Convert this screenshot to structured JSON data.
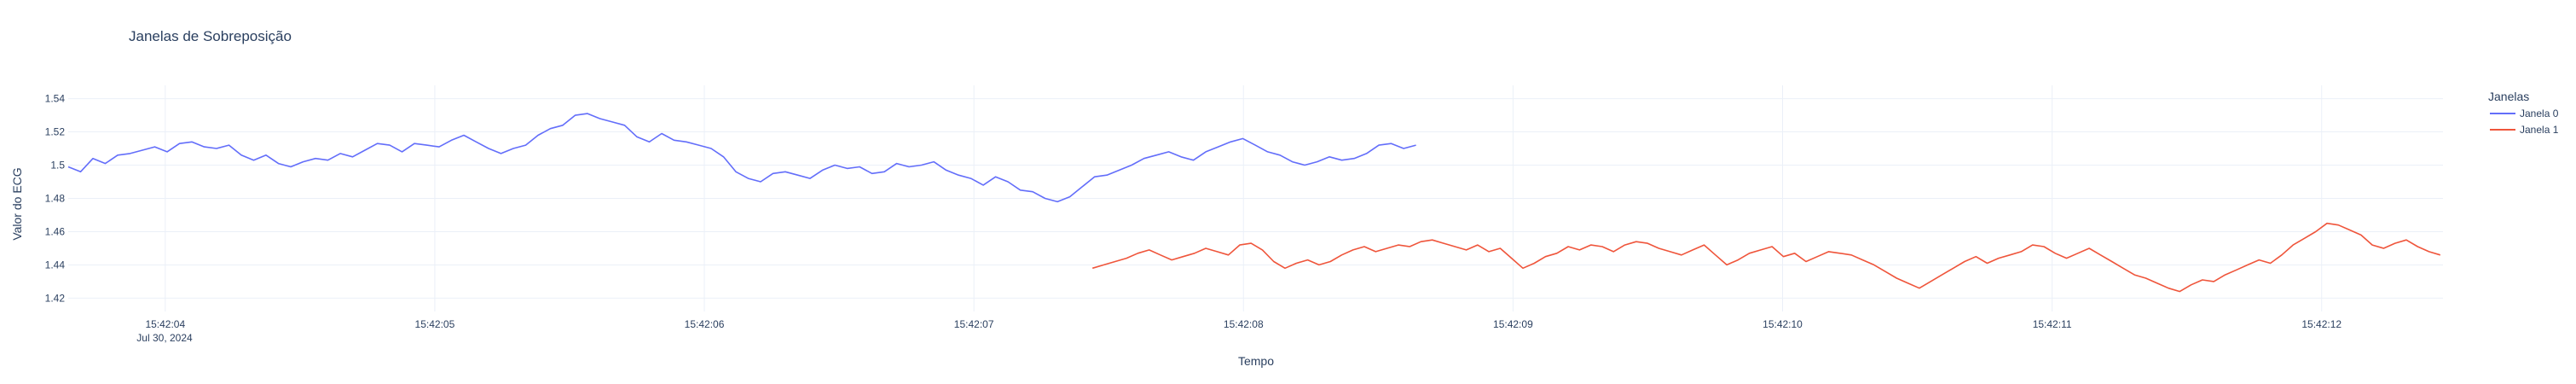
{
  "chart_data": {
    "type": "line",
    "title": "Janelas de Sobreposição",
    "xlabel": "Tempo",
    "ylabel": "Valor do ECG",
    "x_ticks": [
      "15:42:04",
      "15:42:05",
      "15:42:06",
      "15:42:07",
      "15:42:08",
      "15:42:09",
      "15:42:10",
      "15:42:11",
      "15:42:12"
    ],
    "x_tick_date": "Jul 30, 2024",
    "xlim": [
      "2024-07-30 15:42:03.640",
      "2024-07-30 15:42:12.450"
    ],
    "y_ticks": [
      "1.42",
      "1.44",
      "1.46",
      "1.48",
      "1.5",
      "1.52",
      "1.54"
    ],
    "ylim": [
      1.412,
      1.548
    ],
    "grid": true,
    "legend_title": "Janelas",
    "legend_position": "top-right",
    "series": [
      {
        "name": "Janela 0",
        "color": "#636efa",
        "x_start": "2024-07-30 15:42:03.640",
        "x_end": "2024-07-30 15:42:08.640",
        "values": [
          1.499,
          1.496,
          1.504,
          1.501,
          1.506,
          1.507,
          1.509,
          1.511,
          1.508,
          1.513,
          1.514,
          1.511,
          1.51,
          1.512,
          1.506,
          1.503,
          1.506,
          1.501,
          1.499,
          1.502,
          1.504,
          1.503,
          1.507,
          1.505,
          1.509,
          1.513,
          1.512,
          1.508,
          1.513,
          1.512,
          1.511,
          1.515,
          1.518,
          1.514,
          1.51,
          1.507,
          1.51,
          1.512,
          1.518,
          1.522,
          1.524,
          1.53,
          1.531,
          1.528,
          1.526,
          1.524,
          1.517,
          1.514,
          1.519,
          1.515,
          1.514,
          1.512,
          1.51,
          1.505,
          1.496,
          1.492,
          1.49,
          1.495,
          1.496,
          1.494,
          1.492,
          1.497,
          1.5,
          1.498,
          1.499,
          1.495,
          1.496,
          1.501,
          1.499,
          1.5,
          1.502,
          1.497,
          1.494,
          1.492,
          1.488,
          1.493,
          1.49,
          1.485,
          1.484,
          1.48,
          1.478,
          1.481,
          1.487,
          1.493,
          1.494,
          1.497,
          1.5,
          1.504,
          1.506,
          1.508,
          1.505,
          1.503,
          1.508,
          1.511,
          1.514,
          1.516,
          1.512,
          1.508,
          1.506,
          1.502,
          1.5,
          1.502,
          1.505,
          1.503,
          1.504,
          1.507,
          1.512,
          1.513,
          1.51,
          1.512
        ]
      },
      {
        "name": "Janela 1",
        "color": "#ef553b",
        "x_start": "2024-07-30 15:42:07.440",
        "x_end": "2024-07-30 15:42:12.440",
        "values": [
          1.438,
          1.44,
          1.442,
          1.444,
          1.447,
          1.449,
          1.446,
          1.443,
          1.445,
          1.447,
          1.45,
          1.448,
          1.446,
          1.452,
          1.453,
          1.449,
          1.442,
          1.438,
          1.441,
          1.443,
          1.44,
          1.442,
          1.446,
          1.449,
          1.451,
          1.448,
          1.45,
          1.452,
          1.451,
          1.454,
          1.455,
          1.453,
          1.451,
          1.449,
          1.452,
          1.448,
          1.45,
          1.444,
          1.438,
          1.441,
          1.445,
          1.447,
          1.451,
          1.449,
          1.452,
          1.451,
          1.448,
          1.452,
          1.454,
          1.453,
          1.45,
          1.448,
          1.446,
          1.449,
          1.452,
          1.446,
          1.44,
          1.443,
          1.447,
          1.449,
          1.451,
          1.445,
          1.447,
          1.442,
          1.445,
          1.448,
          1.447,
          1.446,
          1.443,
          1.44,
          1.436,
          1.432,
          1.429,
          1.426,
          1.43,
          1.434,
          1.438,
          1.442,
          1.445,
          1.441,
          1.444,
          1.446,
          1.448,
          1.452,
          1.451,
          1.447,
          1.444,
          1.447,
          1.45,
          1.446,
          1.442,
          1.438,
          1.434,
          1.432,
          1.429,
          1.426,
          1.424,
          1.428,
          1.431,
          1.43,
          1.434,
          1.437,
          1.44,
          1.443,
          1.441,
          1.446,
          1.452,
          1.456,
          1.46,
          1.465,
          1.464,
          1.461,
          1.458,
          1.452,
          1.45,
          1.453,
          1.455,
          1.451,
          1.448,
          1.446
        ]
      }
    ]
  }
}
